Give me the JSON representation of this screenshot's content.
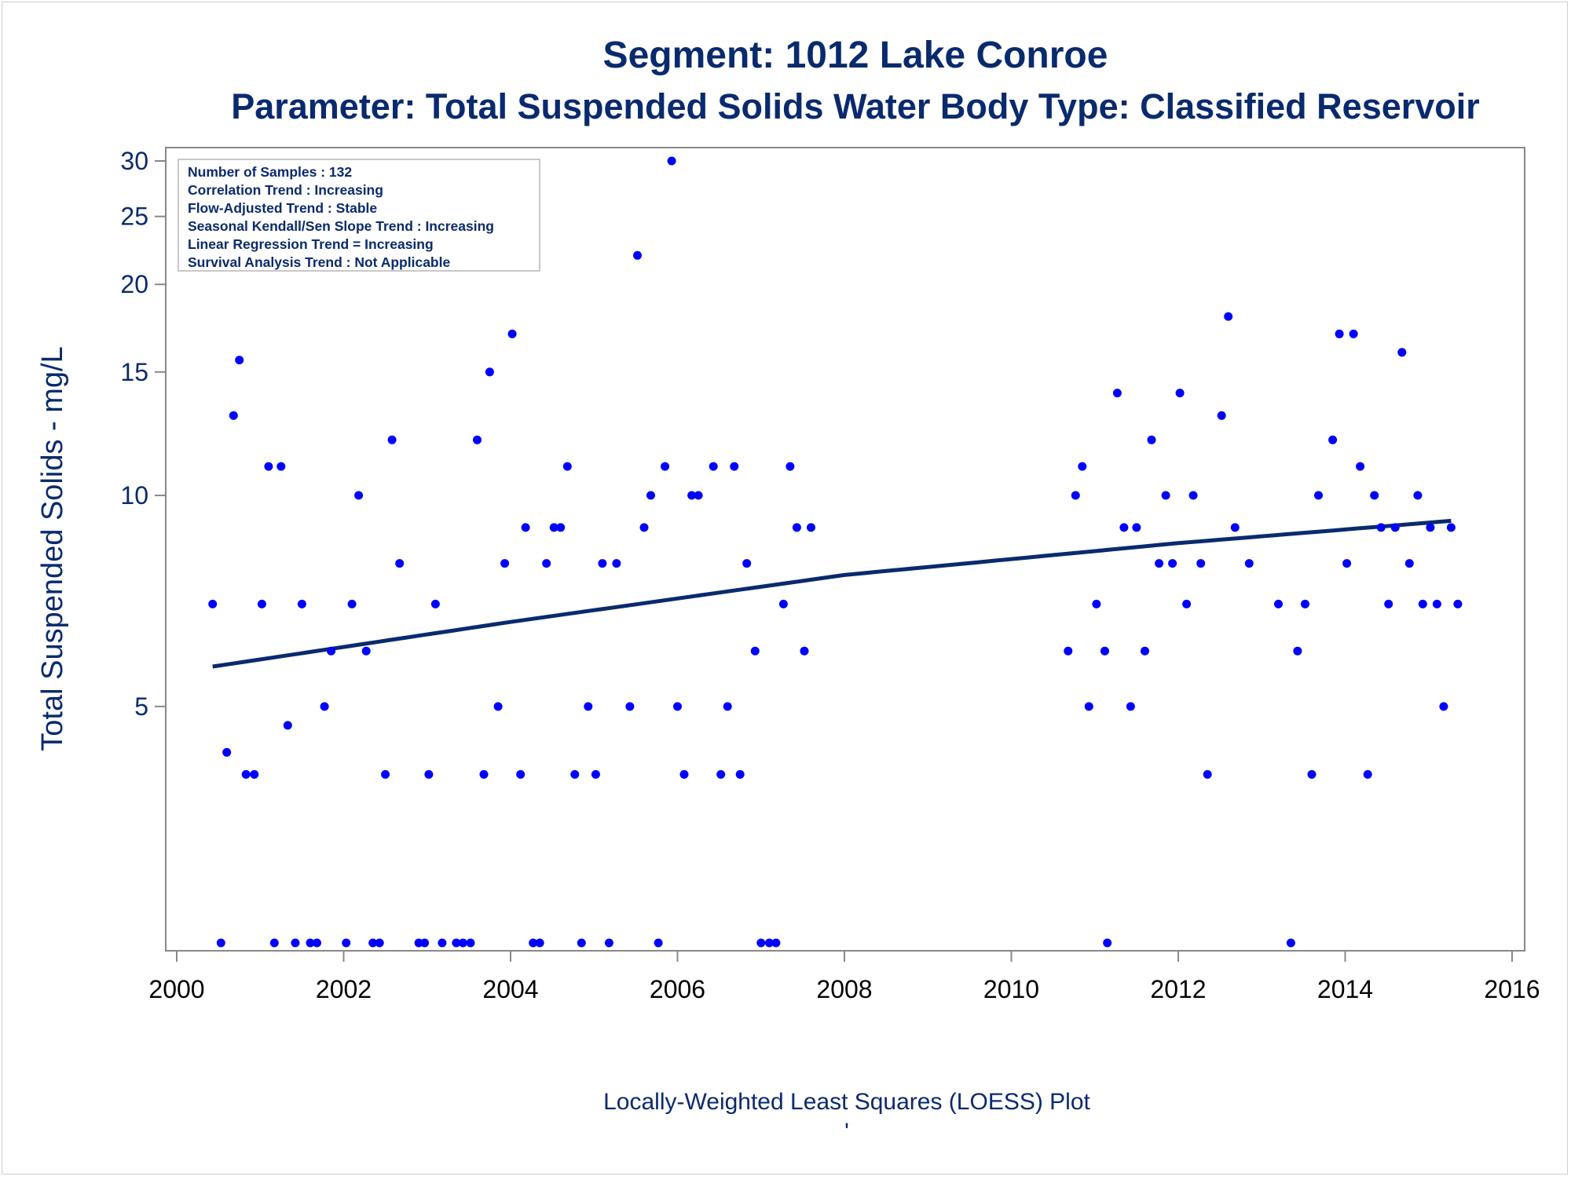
{
  "chart_data": {
    "type": "scatter",
    "title": "Segment: 1012  Lake Conroe",
    "subtitle": "Parameter: Total Suspended Solids   Water Body Type: Classified Reservoir",
    "xlabel": "",
    "ylabel": "Total Suspended Solids - mg/L",
    "footnote": "Locally-Weighted Least Squares (LOESS) Plot",
    "footnote_mark": "'",
    "x_scale": "linear (year)",
    "y_scale": "log",
    "xlim": [
      2000,
      2016
    ],
    "ylim": [
      2.3,
      30
    ],
    "x_ticks": [
      2000,
      2002,
      2004,
      2006,
      2008,
      2010,
      2012,
      2014,
      2016
    ],
    "y_ticks": [
      5,
      10,
      15,
      20,
      25,
      30
    ],
    "grid": false,
    "colors": {
      "points": "#0000ff",
      "trend": "#0a2a6e",
      "text": "#0a2a6e",
      "axes": "#888888"
    },
    "inset": [
      "Number of Samples : 132",
      "Correlation Trend : Increasing",
      "Flow-Adjusted Trend : Stable",
      "Seasonal Kendall/Sen Slope Trend : Increasing",
      "Linear Regression Trend = Increasing",
      "Survival Analysis Trend : Not Applicable"
    ],
    "points": [
      [
        2000.43,
        7
      ],
      [
        2000.53,
        2.3
      ],
      [
        2000.6,
        4.3
      ],
      [
        2000.68,
        13
      ],
      [
        2000.75,
        15.6
      ],
      [
        2000.83,
        4
      ],
      [
        2000.93,
        4
      ],
      [
        2001.02,
        7
      ],
      [
        2001.1,
        11
      ],
      [
        2001.17,
        2.3
      ],
      [
        2001.25,
        11
      ],
      [
        2001.33,
        4.7
      ],
      [
        2001.42,
        2.3
      ],
      [
        2001.5,
        7
      ],
      [
        2001.6,
        2.3
      ],
      [
        2001.68,
        2.3
      ],
      [
        2001.77,
        5
      ],
      [
        2001.85,
        6
      ],
      [
        2002.03,
        2.3
      ],
      [
        2002.1,
        7
      ],
      [
        2002.18,
        10
      ],
      [
        2002.27,
        6
      ],
      [
        2002.35,
        2.3
      ],
      [
        2002.43,
        2.3
      ],
      [
        2002.5,
        4
      ],
      [
        2002.58,
        12
      ],
      [
        2002.67,
        8
      ],
      [
        2002.9,
        2.3
      ],
      [
        2002.97,
        2.3
      ],
      [
        2003.02,
        4
      ],
      [
        2003.1,
        7
      ],
      [
        2003.18,
        2.3
      ],
      [
        2003.35,
        2.3
      ],
      [
        2003.43,
        2.3
      ],
      [
        2003.52,
        2.3
      ],
      [
        2003.6,
        12
      ],
      [
        2003.68,
        4
      ],
      [
        2003.75,
        15
      ],
      [
        2003.85,
        5
      ],
      [
        2003.93,
        8
      ],
      [
        2004.02,
        17
      ],
      [
        2004.12,
        4
      ],
      [
        2004.18,
        9
      ],
      [
        2004.27,
        2.3
      ],
      [
        2004.35,
        2.3
      ],
      [
        2004.43,
        8
      ],
      [
        2004.52,
        9
      ],
      [
        2004.6,
        9
      ],
      [
        2004.68,
        11
      ],
      [
        2004.77,
        4
      ],
      [
        2004.85,
        2.3
      ],
      [
        2004.93,
        5
      ],
      [
        2005.02,
        4
      ],
      [
        2005.1,
        8
      ],
      [
        2005.18,
        2.3
      ],
      [
        2005.27,
        8
      ],
      [
        2005.43,
        5
      ],
      [
        2005.52,
        22
      ],
      [
        2005.6,
        9
      ],
      [
        2005.68,
        10
      ],
      [
        2005.77,
        2.3
      ],
      [
        2005.85,
        11
      ],
      [
        2005.93,
        30
      ],
      [
        2006.0,
        5
      ],
      [
        2006.08,
        4
      ],
      [
        2006.17,
        10
      ],
      [
        2006.25,
        10
      ],
      [
        2006.43,
        11
      ],
      [
        2006.52,
        4
      ],
      [
        2006.6,
        5
      ],
      [
        2006.68,
        11
      ],
      [
        2006.75,
        4
      ],
      [
        2006.83,
        8
      ],
      [
        2006.93,
        6
      ],
      [
        2007.0,
        2.3
      ],
      [
        2007.1,
        2.3
      ],
      [
        2007.18,
        2.3
      ],
      [
        2007.27,
        7
      ],
      [
        2007.35,
        11
      ],
      [
        2007.43,
        9
      ],
      [
        2007.52,
        6
      ],
      [
        2007.6,
        9
      ],
      [
        2010.68,
        6
      ],
      [
        2010.77,
        10
      ],
      [
        2010.85,
        11
      ],
      [
        2010.93,
        5
      ],
      [
        2011.02,
        7
      ],
      [
        2011.12,
        6
      ],
      [
        2011.15,
        2.3
      ],
      [
        2011.27,
        14
      ],
      [
        2011.35,
        9
      ],
      [
        2011.43,
        5
      ],
      [
        2011.5,
        9
      ],
      [
        2011.6,
        6
      ],
      [
        2011.68,
        12
      ],
      [
        2011.77,
        8
      ],
      [
        2011.85,
        10
      ],
      [
        2011.93,
        8
      ],
      [
        2012.02,
        14
      ],
      [
        2012.1,
        7
      ],
      [
        2012.18,
        10
      ],
      [
        2012.27,
        8
      ],
      [
        2012.35,
        4
      ],
      [
        2012.52,
        13
      ],
      [
        2012.6,
        18
      ],
      [
        2012.68,
        9
      ],
      [
        2012.85,
        8
      ],
      [
        2013.2,
        7
      ],
      [
        2013.35,
        2.3
      ],
      [
        2013.43,
        6
      ],
      [
        2013.52,
        7
      ],
      [
        2013.6,
        4
      ],
      [
        2013.68,
        10
      ],
      [
        2013.85,
        12
      ],
      [
        2013.93,
        17
      ],
      [
        2014.02,
        8
      ],
      [
        2014.1,
        17
      ],
      [
        2014.18,
        11
      ],
      [
        2014.27,
        4
      ],
      [
        2014.35,
        10
      ],
      [
        2014.43,
        9
      ],
      [
        2014.52,
        7
      ],
      [
        2014.6,
        9
      ],
      [
        2014.68,
        16
      ],
      [
        2014.77,
        8
      ],
      [
        2014.87,
        10
      ],
      [
        2014.93,
        7
      ],
      [
        2015.02,
        9
      ],
      [
        2015.1,
        7
      ],
      [
        2015.18,
        5
      ],
      [
        2015.27,
        9
      ],
      [
        2015.35,
        7
      ]
    ],
    "trend_line": [
      [
        2000.43,
        5.7
      ],
      [
        2004.0,
        6.6
      ],
      [
        2008.0,
        7.7
      ],
      [
        2012.0,
        8.55
      ],
      [
        2015.27,
        9.2
      ]
    ]
  }
}
